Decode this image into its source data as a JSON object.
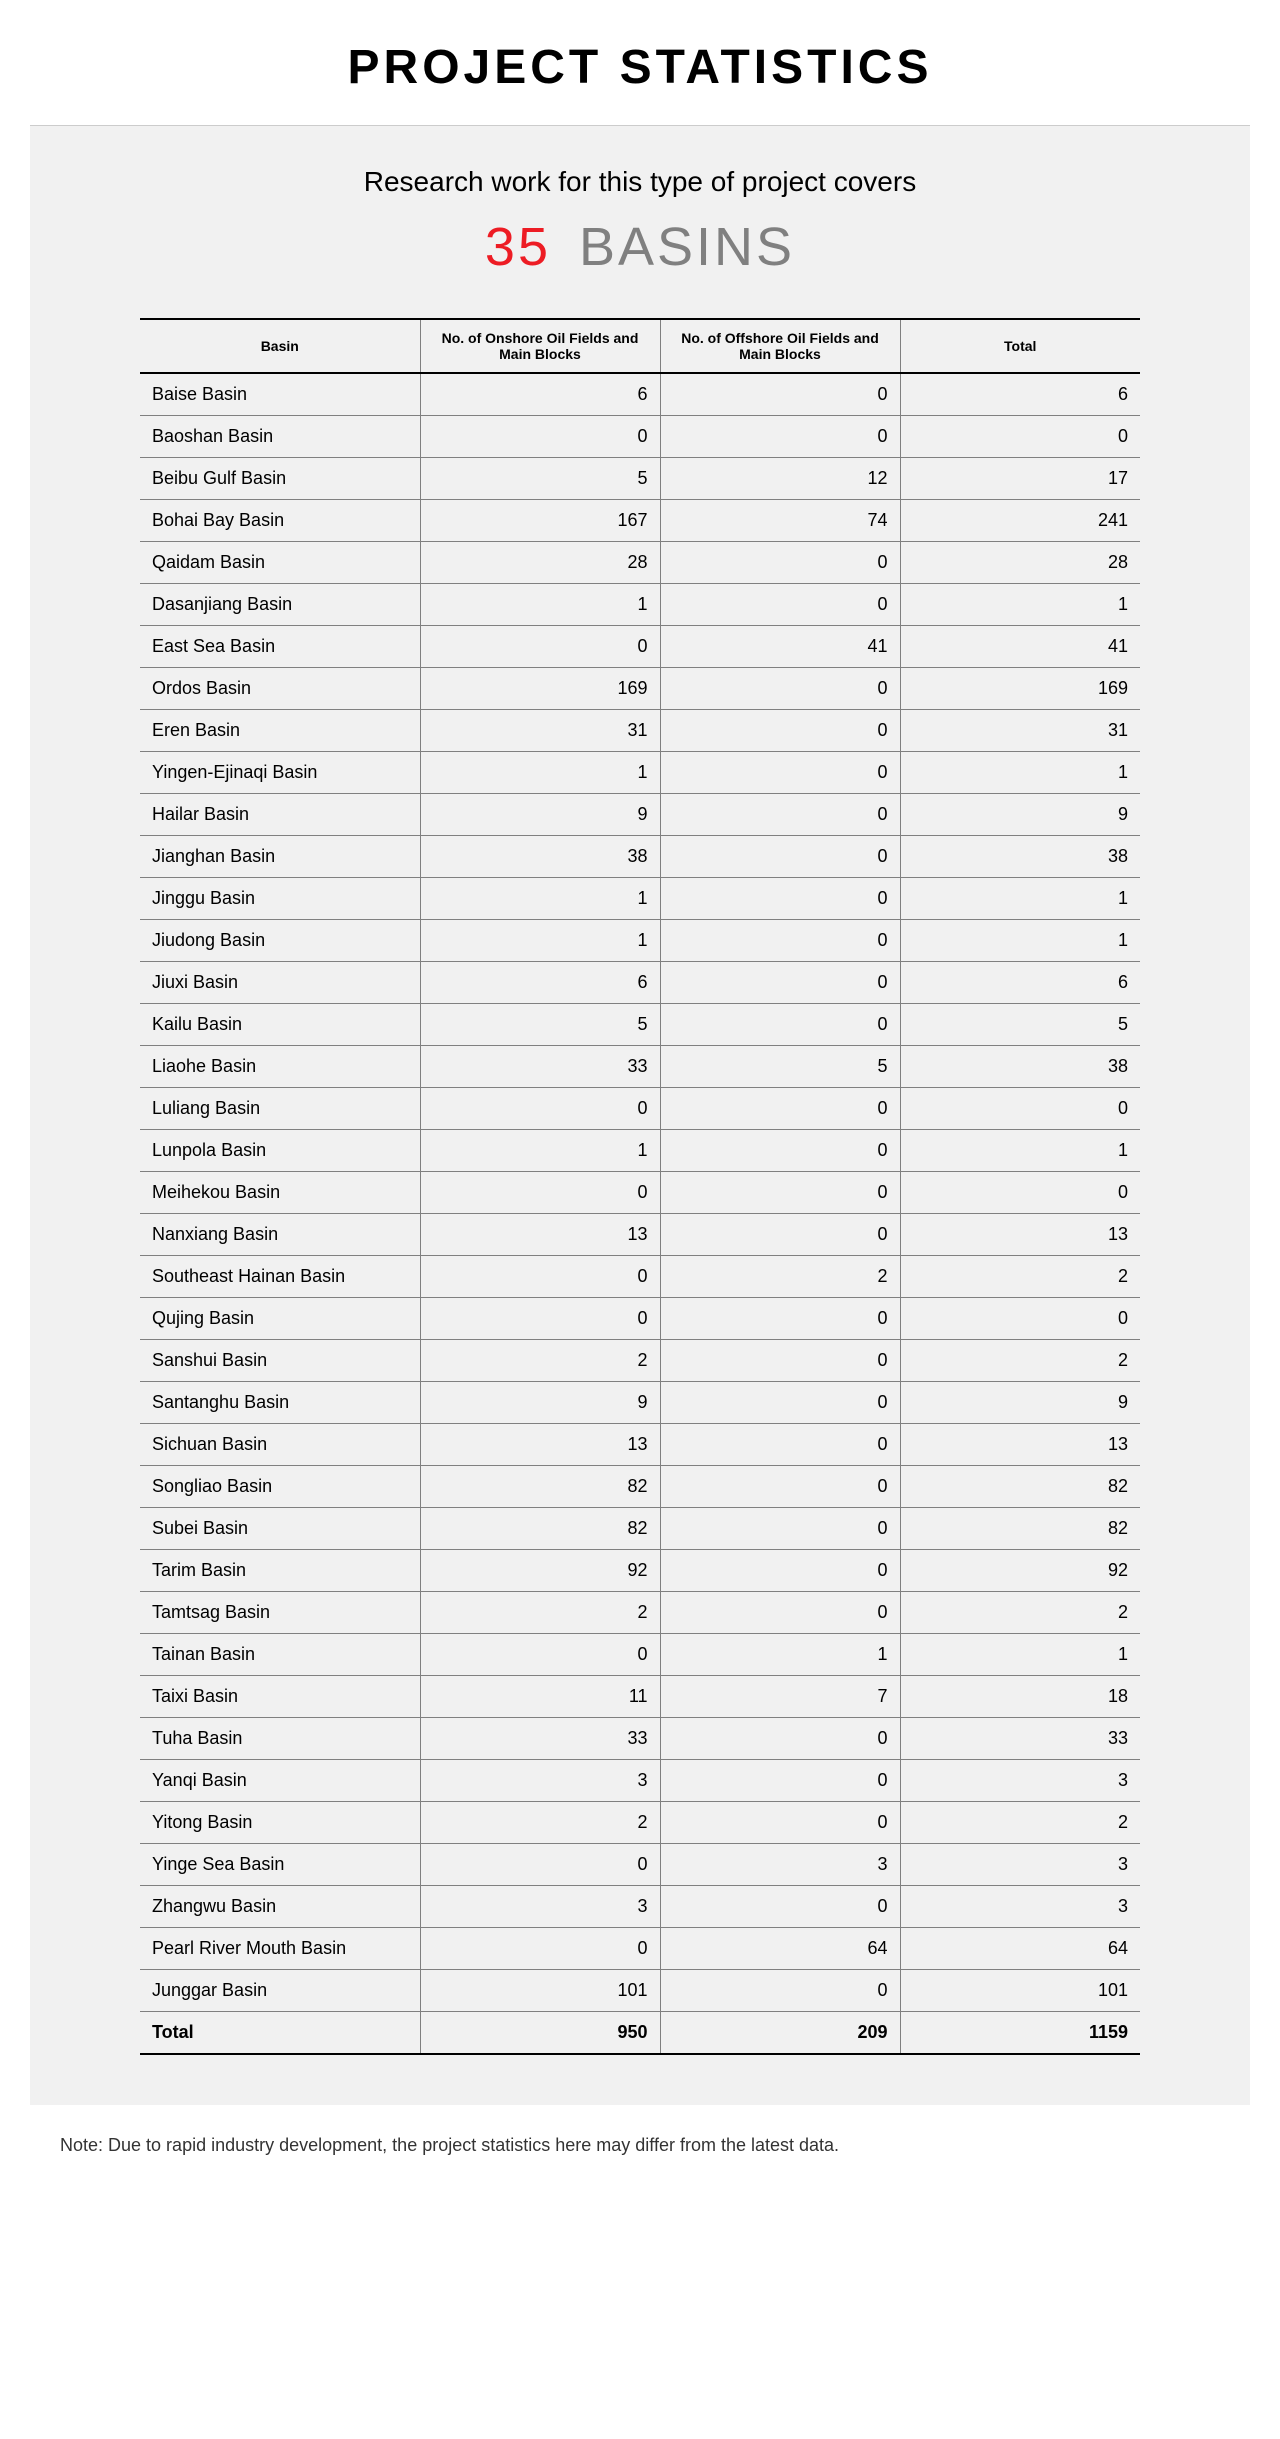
{
  "page_title": "PROJECT STATISTICS",
  "intro": "Research work for this type of project covers",
  "count_number": "35",
  "count_label": "BASINS",
  "columns": [
    "Basin",
    "No. of Onshore Oil Fields and Main Blocks",
    "No. of Offshore Oil Fields and Main Blocks",
    "Total"
  ],
  "rows": [
    {
      "basin": "Baise Basin",
      "onshore": 6,
      "offshore": 0,
      "total": 6
    },
    {
      "basin": "Baoshan Basin",
      "onshore": 0,
      "offshore": 0,
      "total": 0
    },
    {
      "basin": "Beibu Gulf Basin",
      "onshore": 5,
      "offshore": 12,
      "total": 17
    },
    {
      "basin": "Bohai Bay Basin",
      "onshore": 167,
      "offshore": 74,
      "total": 241
    },
    {
      "basin": "Qaidam Basin",
      "onshore": 28,
      "offshore": 0,
      "total": 28
    },
    {
      "basin": "Dasanjiang Basin",
      "onshore": 1,
      "offshore": 0,
      "total": 1
    },
    {
      "basin": "East Sea Basin",
      "onshore": 0,
      "offshore": 41,
      "total": 41
    },
    {
      "basin": "Ordos Basin",
      "onshore": 169,
      "offshore": 0,
      "total": 169
    },
    {
      "basin": "Eren Basin",
      "onshore": 31,
      "offshore": 0,
      "total": 31
    },
    {
      "basin": "Yingen-Ejinaqi Basin",
      "onshore": 1,
      "offshore": 0,
      "total": 1
    },
    {
      "basin": "Hailar Basin",
      "onshore": 9,
      "offshore": 0,
      "total": 9
    },
    {
      "basin": "Jianghan Basin",
      "onshore": 38,
      "offshore": 0,
      "total": 38
    },
    {
      "basin": "Jinggu Basin",
      "onshore": 1,
      "offshore": 0,
      "total": 1
    },
    {
      "basin": "Jiudong Basin",
      "onshore": 1,
      "offshore": 0,
      "total": 1
    },
    {
      "basin": "Jiuxi Basin",
      "onshore": 6,
      "offshore": 0,
      "total": 6
    },
    {
      "basin": "Kailu Basin",
      "onshore": 5,
      "offshore": 0,
      "total": 5
    },
    {
      "basin": "Liaohe Basin",
      "onshore": 33,
      "offshore": 5,
      "total": 38
    },
    {
      "basin": "Luliang Basin",
      "onshore": 0,
      "offshore": 0,
      "total": 0
    },
    {
      "basin": "Lunpola Basin",
      "onshore": 1,
      "offshore": 0,
      "total": 1
    },
    {
      "basin": "Meihekou Basin",
      "onshore": 0,
      "offshore": 0,
      "total": 0
    },
    {
      "basin": "Nanxiang Basin",
      "onshore": 13,
      "offshore": 0,
      "total": 13
    },
    {
      "basin": "Southeast Hainan Basin",
      "onshore": 0,
      "offshore": 2,
      "total": 2
    },
    {
      "basin": "Qujing Basin",
      "onshore": 0,
      "offshore": 0,
      "total": 0
    },
    {
      "basin": "Sanshui Basin",
      "onshore": 2,
      "offshore": 0,
      "total": 2
    },
    {
      "basin": "Santanghu Basin",
      "onshore": 9,
      "offshore": 0,
      "total": 9
    },
    {
      "basin": "Sichuan Basin",
      "onshore": 13,
      "offshore": 0,
      "total": 13
    },
    {
      "basin": "Songliao Basin",
      "onshore": 82,
      "offshore": 0,
      "total": 82
    },
    {
      "basin": "Subei Basin",
      "onshore": 82,
      "offshore": 0,
      "total": 82
    },
    {
      "basin": "Tarim Basin",
      "onshore": 92,
      "offshore": 0,
      "total": 92
    },
    {
      "basin": "Tamtsag Basin",
      "onshore": 2,
      "offshore": 0,
      "total": 2
    },
    {
      "basin": "Tainan Basin",
      "onshore": 0,
      "offshore": 1,
      "total": 1
    },
    {
      "basin": "Taixi Basin",
      "onshore": 11,
      "offshore": 7,
      "total": 18
    },
    {
      "basin": "Tuha Basin",
      "onshore": 33,
      "offshore": 0,
      "total": 33
    },
    {
      "basin": "Yanqi Basin",
      "onshore": 3,
      "offshore": 0,
      "total": 3
    },
    {
      "basin": "Yitong Basin",
      "onshore": 2,
      "offshore": 0,
      "total": 2
    },
    {
      "basin": "Yinge Sea Basin",
      "onshore": 0,
      "offshore": 3,
      "total": 3
    },
    {
      "basin": "Zhangwu Basin",
      "onshore": 3,
      "offshore": 0,
      "total": 3
    },
    {
      "basin": "Pearl River Mouth Basin",
      "onshore": 0,
      "offshore": 64,
      "total": 64
    },
    {
      "basin": "Junggar Basin",
      "onshore": 101,
      "offshore": 0,
      "total": 101
    }
  ],
  "grand_total": {
    "label": "Total",
    "onshore": 950,
    "offshore": 209,
    "total": 1159
  },
  "footnote": "Note: Due to rapid industry development, the project statistics here may differ from the latest data.",
  "style": {
    "page_bg": "#ffffff",
    "panel_bg": "#f1f1f1",
    "title_color": "#000000",
    "count_number_color": "#ed1c24",
    "count_label_color": "#808080",
    "grid_line": "#808080",
    "heavy_line": "#000000",
    "title_fontsize": 48,
    "intro_fontsize": 28,
    "count_fontsize": 54,
    "header_fontsize": 14,
    "body_fontsize": 18,
    "col_widths_pct": [
      28,
      24,
      24,
      24
    ]
  }
}
